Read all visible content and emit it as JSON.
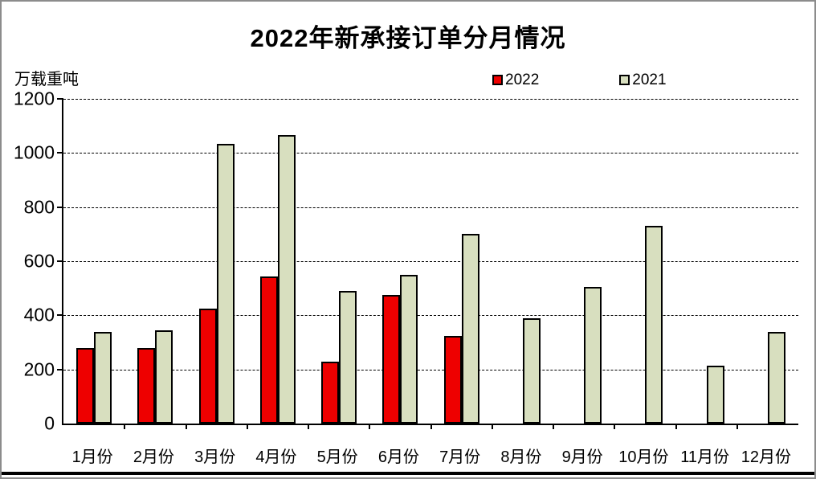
{
  "chart_data": {
    "type": "bar",
    "title": "2022年新承接订单分月情况",
    "ylabel": "万载重吨",
    "xlabel": "",
    "ylim": [
      0,
      1200
    ],
    "yticks": [
      0,
      200,
      400,
      600,
      800,
      1000,
      1200
    ],
    "grid": true,
    "gridline_style": "dashed",
    "legend_position": "top-right",
    "categories": [
      "1月份",
      "2月份",
      "3月份",
      "4月份",
      "5月份",
      "6月份",
      "7月份",
      "8月份",
      "9月份",
      "10月份",
      "11月份",
      "12月份"
    ],
    "series": [
      {
        "name": "2022",
        "color": "#ee0000",
        "values": [
          280,
          280,
          425,
          545,
          230,
          475,
          325,
          null,
          null,
          null,
          null,
          null
        ]
      },
      {
        "name": "2021",
        "color": "#d8dfbf",
        "values": [
          340,
          345,
          1035,
          1065,
          490,
          550,
          700,
          390,
          505,
          730,
          215,
          340
        ]
      }
    ]
  },
  "colors": {
    "bar_border": "#000000",
    "axis": "#000000",
    "background": "#ffffff",
    "frame_border": "#8c8c8c",
    "bottom_rule": "#000000"
  }
}
